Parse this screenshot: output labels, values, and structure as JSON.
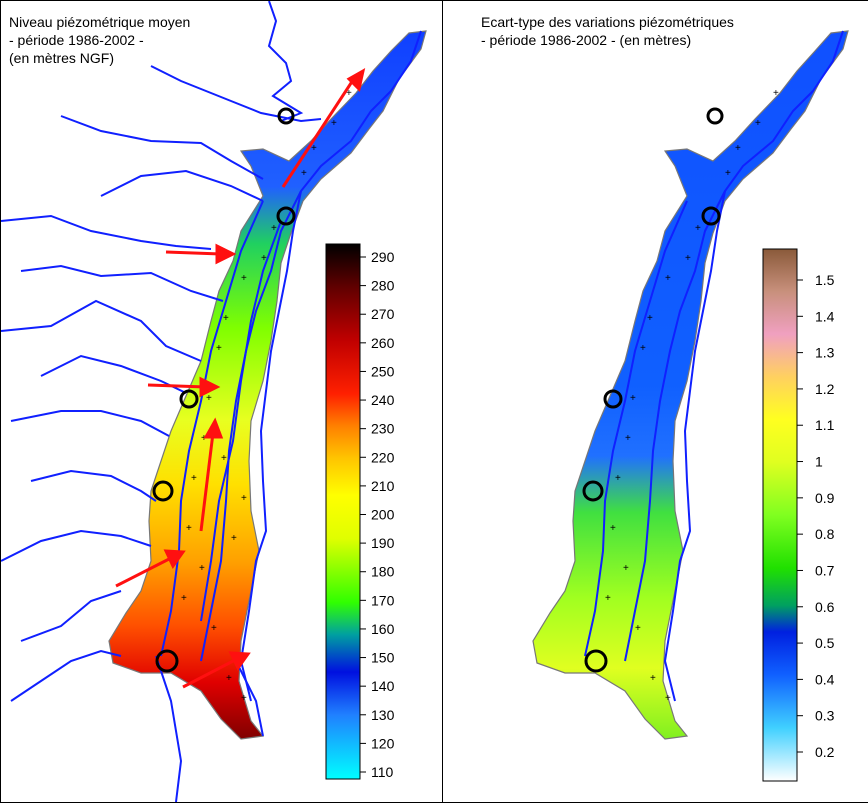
{
  "left_panel": {
    "title_lines": [
      "Niveau piézométrique moyen",
      "- période 1986-2002 -",
      "(en mètres NGF)"
    ],
    "legend_ticks": [
      "290",
      "280",
      "270",
      "260",
      "250",
      "240",
      "230",
      "220",
      "210",
      "200",
      "190",
      "180",
      "170",
      "160",
      "150",
      "140",
      "130",
      "120",
      "110"
    ],
    "legend_colors": [
      "#000000",
      "#3a0000",
      "#7a0000",
      "#b00000",
      "#e00000",
      "#ff3000",
      "#ff6a00",
      "#ff9a00",
      "#ffc400",
      "#ffe600",
      "#ffff00",
      "#e0ff00",
      "#a0ff00",
      "#40ff00",
      "#00e040",
      "#00a0ff",
      "#0030ff",
      "#2060ff",
      "#00ffff"
    ],
    "arrow_color": "#ff1010",
    "river_color": "#1020ff"
  },
  "right_panel": {
    "title_lines": [
      "Ecart-type des variations piézométriques",
      "- période 1986-2002 - (en mètres)"
    ],
    "legend_ticks": [
      "1.5",
      "1.4",
      "1.3",
      "1.2",
      "1.1",
      "1",
      "0.9",
      "0.8",
      "0.7",
      "0.6",
      "0.5",
      "0.4",
      "0.3",
      "0.2"
    ],
    "legend_colors": [
      "#9a6a4a",
      "#c8907c",
      "#f0a0c0",
      "#f8c8a0",
      "#ffe060",
      "#ffff20",
      "#e0ff20",
      "#a0ff20",
      "#60f020",
      "#30e000",
      "#00c040",
      "#0030ff",
      "#1060ff",
      "#40c0ff",
      "#ffffff"
    ],
    "river_color": "#1020ff"
  }
}
